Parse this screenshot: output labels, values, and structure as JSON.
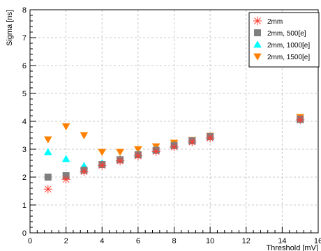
{
  "chart_data": {
    "type": "scatter",
    "xlabel": "Threshold [mV]",
    "ylabel": "Sigma [ns]",
    "xlim": [
      0,
      16
    ],
    "ylim": [
      0,
      8
    ],
    "xticks": [
      "0",
      "2",
      "4",
      "6",
      "8",
      "10",
      "12",
      "14",
      "16"
    ],
    "yticks": [
      "0",
      "1",
      "2",
      "3",
      "4",
      "5",
      "6",
      "7",
      "8"
    ],
    "grid": true,
    "legend_position": "top-right",
    "series": [
      {
        "name": "2mm",
        "marker": "asterisk",
        "color": "#ff3b30",
        "x": [
          1,
          2,
          3,
          4,
          5,
          6,
          7,
          8,
          9,
          10,
          15
        ],
        "y": [
          1.57,
          1.92,
          2.2,
          2.42,
          2.58,
          2.76,
          2.92,
          3.08,
          3.26,
          3.4,
          4.05
        ]
      },
      {
        "name": "2mm, 500[e]",
        "marker": "square",
        "color": "#7f7f7f",
        "x": [
          1,
          2,
          3,
          4,
          5,
          6,
          7,
          8,
          9,
          10,
          15
        ],
        "y": [
          2.0,
          2.05,
          2.25,
          2.45,
          2.62,
          2.8,
          2.96,
          3.13,
          3.3,
          3.45,
          4.08
        ]
      },
      {
        "name": "2mm, 1000[e]",
        "marker": "triangle-up",
        "color": "#00ffff",
        "x": [
          1,
          2,
          3,
          4,
          5,
          6,
          7,
          8,
          9,
          10,
          15
        ],
        "y": [
          2.9,
          2.65,
          2.4,
          2.5,
          2.63,
          2.82,
          2.98,
          3.15,
          3.3,
          3.43,
          4.05
        ]
      },
      {
        "name": "2mm, 1500[e]",
        "marker": "triangle-down",
        "color": "#ff8000",
        "x": [
          1,
          2,
          3,
          4,
          5,
          6,
          7,
          8,
          9,
          10,
          15
        ],
        "y": [
          3.35,
          3.82,
          3.5,
          2.9,
          2.9,
          3.0,
          3.1,
          3.23,
          3.33,
          3.48,
          4.15
        ]
      }
    ]
  }
}
